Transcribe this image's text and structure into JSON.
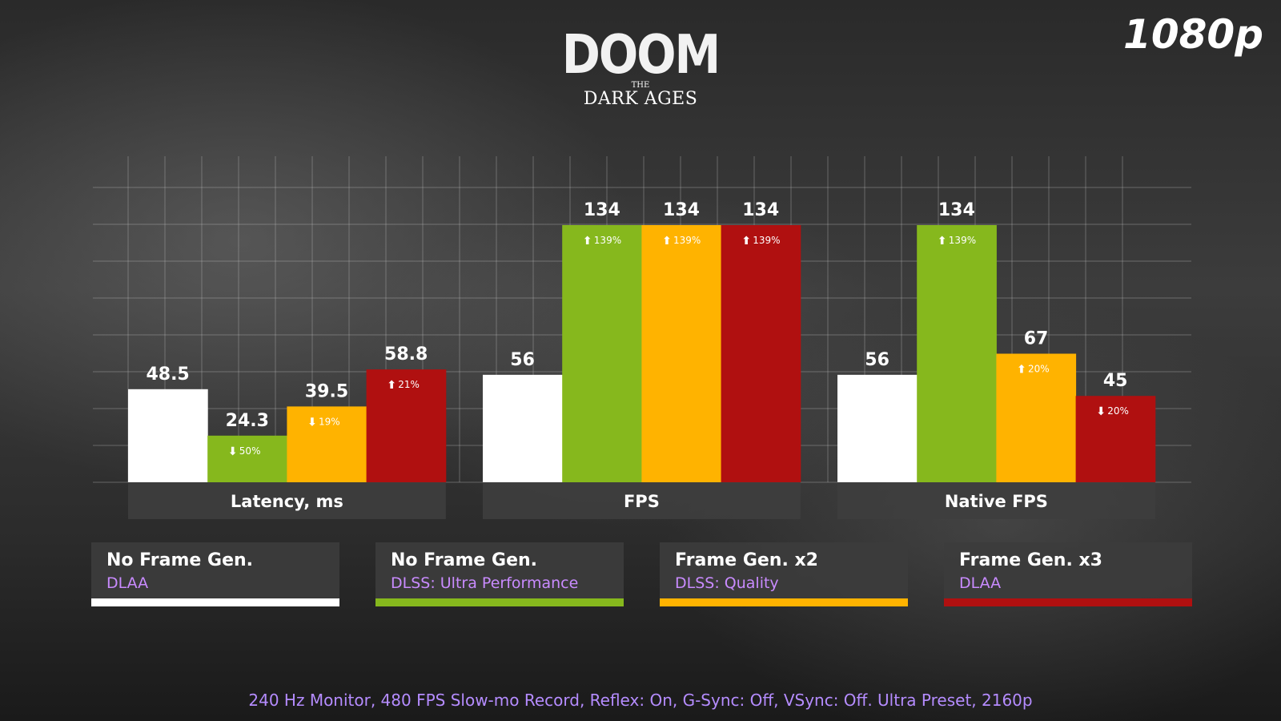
{
  "logo": {
    "line1": "DOOM",
    "line2": "THE",
    "line3": "DARK AGES"
  },
  "resolution": "1080p",
  "chart_data": {
    "type": "bar",
    "ylim": [
      0,
      150
    ],
    "grid": true,
    "groups": [
      {
        "label": "Latency, ms",
        "values": [
          48.5,
          24.3,
          39.5,
          58.8
        ],
        "value_labels": [
          "48.5",
          "24.3",
          "39.5",
          "58.8"
        ],
        "change": [
          null,
          {
            "dir": "down",
            "text": "50%"
          },
          {
            "dir": "down",
            "text": "19%"
          },
          {
            "dir": "up",
            "text": "21%"
          }
        ]
      },
      {
        "label": "FPS",
        "values": [
          56,
          134,
          134,
          134
        ],
        "value_labels": [
          "56",
          "134",
          "134",
          "134"
        ],
        "change": [
          null,
          {
            "dir": "up",
            "text": "139%"
          },
          {
            "dir": "up",
            "text": "139%"
          },
          {
            "dir": "up",
            "text": "139%"
          }
        ]
      },
      {
        "label": "Native FPS",
        "values": [
          56,
          134,
          67,
          45
        ],
        "value_labels": [
          "56",
          "134",
          "67",
          "45"
        ],
        "change": [
          null,
          {
            "dir": "up",
            "text": "139%"
          },
          {
            "dir": "up",
            "text": "20%"
          },
          {
            "dir": "down",
            "text": "20%"
          }
        ]
      }
    ],
    "series": [
      {
        "title": "No Frame Gen.",
        "subtitle": "DLAA",
        "color": "#ffffff"
      },
      {
        "title": "No Frame Gen.",
        "subtitle": "DLSS: Ultra Performance",
        "color": "#86b81d"
      },
      {
        "title": "Frame Gen. x2",
        "subtitle": "DLSS: Quality",
        "color": "#ffb300"
      },
      {
        "title": "Frame Gen. x3",
        "subtitle": "DLAA",
        "color": "#b01010"
      }
    ]
  },
  "footnote": "240 Hz Monitor, 480 FPS Slow-mo Record, Reflex: On, G-Sync: Off, VSync: Off. Ultra Preset, 2160p"
}
